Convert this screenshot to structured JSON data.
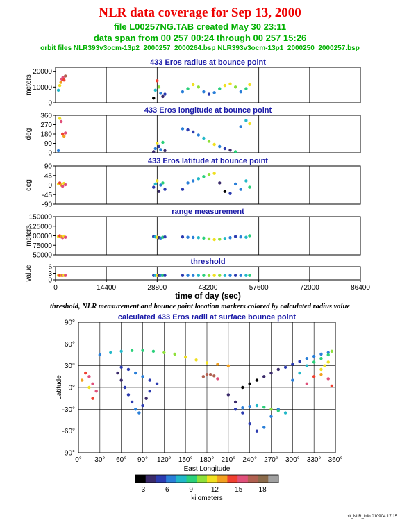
{
  "header": {
    "title": "NLR data coverage for Sep 13, 2000",
    "file_line": "file L00257NG.TAB created May 30 23:11",
    "span_line": "data span from 00 257 00:24 through 00 257 15:26",
    "orbit_line": "orbit files NLR393v3ocm-13p2_2000257_2000264.bsp NLR393v3ocm-13p1_2000250_2000257.bsp"
  },
  "caption": "threshold, NLR measurement and bounce point location markers colored by calculated radius value",
  "footer": "plt_NLR_info 010904 17:15",
  "colorbar": {
    "label": "kilometers",
    "ticks": [
      "3",
      "6",
      "9",
      "12",
      "15",
      "18"
    ],
    "tick_values": [
      3,
      6,
      9,
      12,
      15,
      18
    ],
    "range": [
      2,
      20
    ],
    "colors": [
      "#000000",
      "#3a2a6a",
      "#2b3bb0",
      "#2a7fd8",
      "#22b8c8",
      "#2bd07a",
      "#8ee03a",
      "#f0e020",
      "#f2a020",
      "#f04030",
      "#e0507a",
      "#b06050",
      "#8a6a4a",
      "#a0a0a0"
    ]
  },
  "chart_data": [
    {
      "type": "scatter",
      "title": "433 Eros radius at bounce point",
      "ylabel": "meters",
      "xlim": [
        0,
        86400
      ],
      "ylim": [
        0,
        22500
      ],
      "yticks": [
        0,
        10000,
        20000
      ],
      "ytick_labels": [
        "0",
        "10000",
        "20000"
      ],
      "xgrid": [
        14400,
        28800,
        43200,
        57600,
        72000
      ],
      "series": [
        {
          "x": [
            800,
            1200,
            1500,
            1800,
            2100,
            2400,
            2800
          ],
          "y": [
            8000,
            11000,
            13000,
            15000,
            16000,
            14500,
            17000
          ],
          "v": [
            8,
            11,
            13,
            15,
            16,
            14.5,
            17
          ]
        },
        {
          "x": [
            27800,
            28300,
            28800,
            29300,
            29800,
            30400,
            31000
          ],
          "y": [
            3000,
            8000,
            14000,
            10000,
            6000,
            4000,
            5500
          ],
          "v": [
            3,
            8,
            14,
            10,
            6,
            4,
            5.5
          ]
        },
        {
          "x": [
            36000,
            37500,
            39000,
            40500,
            42000,
            43500,
            45000,
            46500,
            48000,
            49500,
            51000,
            52500,
            54000,
            55000
          ],
          "y": [
            7000,
            9000,
            11500,
            10000,
            7000,
            5500,
            6500,
            9000,
            11000,
            12000,
            10000,
            7000,
            9000,
            11500
          ],
          "v": [
            7,
            9,
            11.5,
            10,
            7,
            5.5,
            6.5,
            9,
            11,
            12,
            10,
            7,
            9,
            11.5
          ]
        }
      ]
    },
    {
      "type": "scatter",
      "title": "433 Eros longitude at bounce point",
      "ylabel": "deg",
      "xlim": [
        0,
        86400
      ],
      "ylim": [
        0,
        360
      ],
      "yticks": [
        0,
        90,
        180,
        270,
        360
      ],
      "ytick_labels": [
        "0",
        "90",
        "180",
        "270",
        "360"
      ],
      "xgrid": [
        14400,
        28800,
        43200,
        57600,
        72000
      ],
      "series": [
        {
          "x": [
            800,
            1200,
            1600,
            2000,
            2400,
            2800
          ],
          "y": [
            20,
            330,
            300,
            180,
            160,
            190
          ],
          "v": [
            6,
            12,
            15,
            14,
            13,
            16
          ]
        },
        {
          "x": [
            27800,
            28300,
            28800,
            29300,
            29800,
            30400,
            31000
          ],
          "y": [
            10,
            40,
            90,
            60,
            30,
            100,
            20
          ],
          "v": [
            4,
            6,
            12,
            5,
            7,
            9,
            4
          ]
        },
        {
          "x": [
            36000,
            37500,
            39000,
            40500,
            42000,
            43500,
            45000,
            46500,
            48000,
            49500,
            51000,
            52500,
            54000,
            55000
          ],
          "y": [
            230,
            220,
            200,
            170,
            140,
            110,
            80,
            60,
            40,
            25,
            10,
            250,
            310,
            280
          ],
          "v": [
            6,
            5,
            5,
            6,
            8,
            10,
            12,
            7,
            5,
            4,
            9,
            6,
            8,
            11
          ]
        }
      ]
    },
    {
      "type": "scatter",
      "title": "433 Eros latitude at bounce point",
      "ylabel": "deg",
      "xlim": [
        0,
        86400
      ],
      "ylim": [
        -90,
        90
      ],
      "yticks": [
        -90,
        -45,
        0,
        45,
        90
      ],
      "ytick_labels": [
        "-90",
        "-45",
        "0",
        "45",
        "90"
      ],
      "xgrid": [
        14400,
        28800,
        43200,
        57600,
        72000
      ],
      "series": [
        {
          "x": [
            800,
            1200,
            1600,
            2000,
            2400,
            2800
          ],
          "y": [
            5,
            10,
            0,
            -5,
            8,
            2
          ],
          "v": [
            12,
            14,
            13,
            15,
            11,
            16
          ]
        },
        {
          "x": [
            27800,
            28300,
            28800,
            29300,
            29800,
            30400,
            31000
          ],
          "y": [
            -10,
            5,
            20,
            -30,
            0,
            10,
            -20
          ],
          "v": [
            5,
            8,
            12,
            4,
            6,
            9,
            5
          ]
        },
        {
          "x": [
            36000,
            37500,
            39000,
            40500,
            42000,
            43500,
            45000,
            46500,
            48000,
            49500,
            51000,
            52500,
            54000,
            55000
          ],
          "y": [
            -20,
            10,
            20,
            30,
            40,
            50,
            55,
            10,
            -30,
            -40,
            5,
            -20,
            20,
            -10
          ],
          "v": [
            5,
            6,
            7,
            8,
            9,
            10,
            11,
            4,
            3,
            5,
            7,
            6,
            8,
            9
          ]
        }
      ]
    },
    {
      "type": "scatter",
      "title": "range measurement",
      "ylabel": "meters",
      "xlim": [
        0,
        86400
      ],
      "ylim": [
        50000,
        150000
      ],
      "yticks": [
        50000,
        75000,
        100000,
        125000,
        150000
      ],
      "ytick_labels": [
        "50000",
        "75000",
        "100000",
        "125000",
        "150000"
      ],
      "xgrid": [
        14400,
        28800,
        43200,
        57600,
        72000
      ],
      "series": [
        {
          "x": [
            800,
            1200,
            1600,
            2000,
            2400,
            2800
          ],
          "y": [
            98000,
            100000,
            97000,
            95000,
            99000,
            96000
          ],
          "v": [
            12,
            14,
            13,
            15,
            11,
            16
          ]
        },
        {
          "x": [
            27800,
            28300,
            28800,
            29300,
            29800,
            30400,
            31000
          ],
          "y": [
            98000,
            97000,
            96000,
            95000,
            94000,
            96000,
            97000
          ],
          "v": [
            5,
            8,
            12,
            4,
            6,
            9,
            5
          ]
        },
        {
          "x": [
            36000,
            37500,
            39000,
            40500,
            42000,
            43500,
            45000,
            46500,
            48000,
            49500,
            51000,
            52500,
            54000,
            55000
          ],
          "y": [
            97000,
            96000,
            95500,
            95000,
            94000,
            92000,
            90000,
            91000,
            93000,
            95000,
            98000,
            97000,
            96000,
            100000
          ],
          "v": [
            5,
            6,
            7,
            8,
            9,
            10,
            11,
            10,
            8,
            6,
            5,
            7,
            8,
            9
          ]
        }
      ]
    },
    {
      "type": "scatter",
      "title": "threshold",
      "ylabel": "value",
      "xlabel": "time of day (sec)",
      "xlim": [
        0,
        86400
      ],
      "ylim": [
        0,
        6
      ],
      "yticks": [
        0,
        3,
        6
      ],
      "ytick_labels": [
        "0",
        "3",
        "6"
      ],
      "xticks": [
        0,
        14400,
        28800,
        43200,
        57600,
        72000,
        86400
      ],
      "xtick_labels": [
        "0",
        "14400",
        "28800",
        "43200",
        "57600",
        "72000",
        "86400"
      ],
      "xgrid": [
        14400,
        28800,
        43200,
        57600,
        72000
      ],
      "series": [
        {
          "x": [
            800,
            1200,
            1600,
            2000,
            2400,
            2800
          ],
          "y": [
            2,
            2,
            2,
            2,
            2,
            2
          ],
          "v": [
            12,
            14,
            13,
            15,
            11,
            16
          ]
        },
        {
          "x": [
            27800,
            28300,
            28800,
            29300,
            29800,
            30400,
            31000
          ],
          "y": [
            2,
            2,
            2,
            2,
            2,
            2,
            2
          ],
          "v": [
            5,
            8,
            12,
            4,
            6,
            9,
            5
          ]
        },
        {
          "x": [
            36000,
            37500,
            39000,
            40500,
            42000,
            43500,
            45000,
            46500,
            48000,
            49500,
            51000,
            52500,
            54000,
            55000
          ],
          "y": [
            2,
            2,
            2,
            2,
            2,
            2,
            2,
            2,
            2,
            2,
            2,
            2,
            2,
            2
          ],
          "v": [
            5,
            6,
            7,
            8,
            9,
            10,
            11,
            10,
            8,
            6,
            5,
            7,
            8,
            9
          ]
        }
      ]
    },
    {
      "type": "scatter",
      "title": "calculated 433 Eros radii at surface bounce point",
      "xlabel": "East Longitude",
      "ylabel": "Latitude",
      "xlim": [
        0,
        360
      ],
      "ylim": [
        -90,
        90
      ],
      "xticks": [
        0,
        30,
        60,
        90,
        120,
        150,
        180,
        210,
        240,
        270,
        300,
        330,
        360
      ],
      "xtick_labels": [
        "0°",
        "30°",
        "60°",
        "90°",
        "120°",
        "150°",
        "180°",
        "210°",
        "240°",
        "270°",
        "300°",
        "330°",
        "360°"
      ],
      "yticks": [
        -90,
        -60,
        -30,
        0,
        30,
        60,
        90
      ],
      "ytick_labels": [
        "-90°",
        "-60°",
        "-30°",
        "0°",
        "30°",
        "60°",
        "90°"
      ],
      "series": [
        {
          "x": [
            30,
            45,
            60,
            75,
            90,
            105,
            120,
            135,
            150,
            165,
            180,
            195,
            210
          ],
          "y": [
            45,
            48,
            50,
            51,
            51,
            50,
            48,
            46,
            42,
            38,
            34,
            32,
            30
          ],
          "v": [
            7,
            7.5,
            8,
            8.5,
            9,
            9.5,
            10,
            10.5,
            11,
            11.5,
            12,
            12.5,
            13
          ]
        },
        {
          "x": [
            5,
            10,
            15,
            20,
            25,
            20,
            15
          ],
          "y": [
            10,
            20,
            15,
            5,
            -5,
            -15,
            0
          ],
          "v": [
            13,
            14,
            15,
            16,
            15,
            14,
            12
          ]
        },
        {
          "x": [
            55,
            60,
            65,
            70,
            75,
            80,
            85,
            90,
            95,
            100
          ],
          "y": [
            20,
            10,
            0,
            -10,
            -20,
            -30,
            -35,
            -25,
            -15,
            -5
          ],
          "v": [
            4,
            4,
            5,
            5,
            5,
            6,
            6,
            5,
            4,
            5
          ]
        },
        {
          "x": [
            60,
            70,
            80,
            90,
            100,
            110
          ],
          "y": [
            28,
            25,
            20,
            15,
            10,
            5
          ],
          "v": [
            5,
            5,
            6,
            6,
            5,
            5
          ]
        },
        {
          "x": [
            175,
            180,
            185,
            190,
            195
          ],
          "y": [
            15,
            18,
            18,
            16,
            12
          ],
          "v": [
            17,
            17,
            17,
            17,
            16
          ]
        },
        {
          "x": [
            210,
            220,
            230,
            240,
            250,
            260,
            270,
            280
          ],
          "y": [
            -10,
            -20,
            -35,
            -50,
            -60,
            -55,
            -40,
            -30
          ],
          "v": [
            4,
            4,
            5,
            5,
            5,
            6,
            6,
            7
          ]
        },
        {
          "x": [
            230,
            240,
            250,
            260,
            270,
            280,
            290,
            300,
            310,
            320,
            330,
            340,
            350
          ],
          "y": [
            0,
            5,
            10,
            15,
            20,
            25,
            28,
            32,
            36,
            40,
            43,
            46,
            48
          ],
          "v": [
            3,
            3,
            3,
            4,
            4,
            4,
            5,
            5,
            5,
            6,
            6,
            6,
            7
          ]
        },
        {
          "x": [
            220,
            230,
            240,
            250,
            260,
            270,
            280,
            290
          ],
          "y": [
            -30,
            -28,
            -26,
            -25,
            -27,
            -30,
            -32,
            -35
          ],
          "v": [
            5,
            6,
            7,
            8,
            9,
            10,
            9,
            8
          ]
        },
        {
          "x": [
            320,
            330,
            340,
            350,
            355
          ],
          "y": [
            5,
            15,
            18,
            12,
            2
          ],
          "v": [
            15,
            14,
            13,
            15,
            14
          ]
        },
        {
          "x": [
            300,
            310,
            320,
            330,
            340,
            350,
            355
          ],
          "y": [
            10,
            20,
            30,
            35,
            40,
            45,
            50
          ],
          "v": [
            7,
            7.5,
            8,
            8.5,
            9,
            9.5,
            10
          ]
        },
        {
          "x": [
            340,
            345,
            350
          ],
          "y": [
            25,
            30,
            35
          ],
          "v": [
            11,
            11,
            11
          ]
        }
      ]
    }
  ]
}
